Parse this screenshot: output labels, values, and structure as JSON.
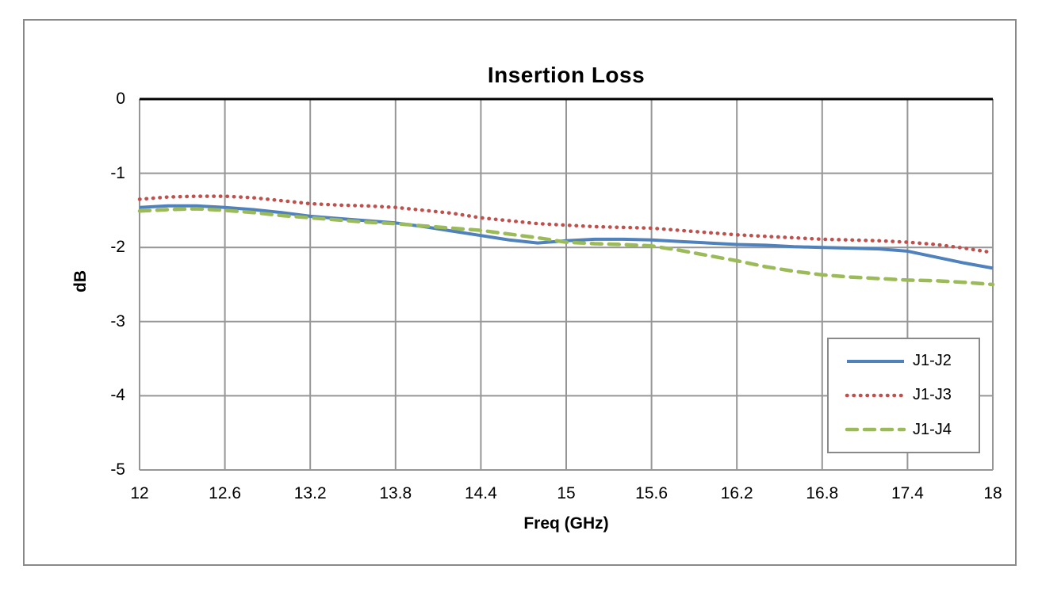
{
  "chart_data": {
    "type": "line",
    "title": "Insertion Loss",
    "xlabel": "Freq (GHz)",
    "ylabel": "dB",
    "xlim": [
      12,
      18
    ],
    "ylim": [
      -5,
      0
    ],
    "x_ticks": [
      12,
      12.6,
      13.2,
      13.8,
      14.4,
      15,
      15.6,
      16.2,
      16.8,
      17.4,
      18
    ],
    "x_tick_labels": [
      "12",
      "12.6",
      "13.2",
      "13.8",
      "14.4",
      "15",
      "15.6",
      "16.2",
      "16.8",
      "17.4",
      "18"
    ],
    "y_ticks": [
      0,
      -1,
      -2,
      -3,
      -4,
      -5
    ],
    "y_tick_labels": [
      "0",
      "-1",
      "-2",
      "-3",
      "-4",
      "-5"
    ],
    "grid": true,
    "legend_position": "inside-bottom-right",
    "x": [
      12,
      12.2,
      12.4,
      12.6,
      12.8,
      13,
      13.2,
      13.4,
      13.6,
      13.8,
      14,
      14.2,
      14.4,
      14.6,
      14.8,
      15,
      15.2,
      15.4,
      15.6,
      15.8,
      16,
      16.2,
      16.4,
      16.6,
      16.8,
      17,
      17.2,
      17.4,
      17.6,
      17.8,
      18
    ],
    "series": [
      {
        "name": "J1-J2",
        "color": "#4F81BD",
        "style": "solid",
        "values": [
          -1.46,
          -1.44,
          -1.44,
          -1.46,
          -1.49,
          -1.53,
          -1.58,
          -1.61,
          -1.64,
          -1.67,
          -1.72,
          -1.78,
          -1.84,
          -1.9,
          -1.94,
          -1.91,
          -1.89,
          -1.89,
          -1.9,
          -1.92,
          -1.94,
          -1.96,
          -1.97,
          -1.99,
          -2.0,
          -2.01,
          -2.02,
          -2.05,
          -2.13,
          -2.21,
          -2.28
        ]
      },
      {
        "name": "J1-J3",
        "color": "#C0504D",
        "style": "dotted",
        "values": [
          -1.35,
          -1.32,
          -1.31,
          -1.31,
          -1.33,
          -1.37,
          -1.41,
          -1.43,
          -1.44,
          -1.46,
          -1.5,
          -1.54,
          -1.6,
          -1.64,
          -1.68,
          -1.7,
          -1.72,
          -1.73,
          -1.74,
          -1.77,
          -1.8,
          -1.83,
          -1.85,
          -1.87,
          -1.89,
          -1.9,
          -1.91,
          -1.93,
          -1.96,
          -2.01,
          -2.07
        ]
      },
      {
        "name": "J1-J4",
        "color": "#9BBB59",
        "style": "dashed",
        "values": [
          -1.51,
          -1.49,
          -1.48,
          -1.5,
          -1.53,
          -1.57,
          -1.6,
          -1.63,
          -1.66,
          -1.68,
          -1.71,
          -1.74,
          -1.77,
          -1.82,
          -1.87,
          -1.93,
          -1.95,
          -1.96,
          -1.98,
          -2.04,
          -2.11,
          -2.18,
          -2.26,
          -2.32,
          -2.37,
          -2.4,
          -2.42,
          -2.44,
          -2.45,
          -2.47,
          -2.5
        ]
      }
    ],
    "colors": {
      "gridline": "#969696",
      "zero_axis": "#000000",
      "frame_border": "#898989",
      "background": "#FFFFFF",
      "text": "#000000"
    }
  }
}
